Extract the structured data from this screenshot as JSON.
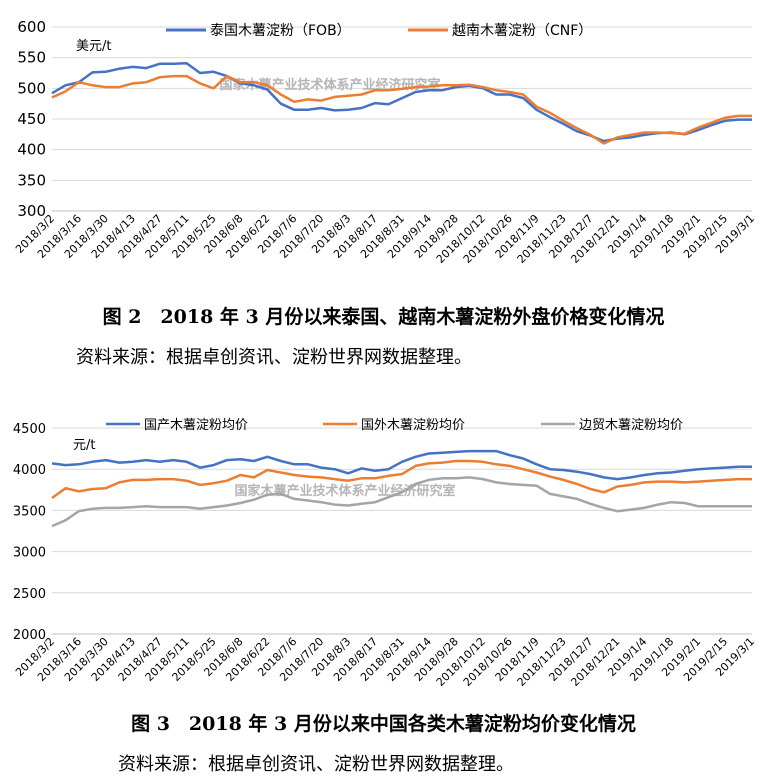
{
  "charts": [
    {
      "legend": [
        "泰国木薯淀粉（FOB）",
        "越南木薯淀粉（CNF）"
      ],
      "caption": "图 2　2018 年 3 月份以来泰国、越南木薯淀粉外盘价格变化情况",
      "source": "资料来源：根据卓创资讯、淀粉世界网数据整理。"
    },
    {
      "legend": [
        "国产木薯淀粉均价",
        "国外木薯淀粉均价",
        "边贸木薯淀粉均价"
      ],
      "caption": "图 3　2018 年 3 月份以来中国各类木薯淀粉均价变化情况",
      "source": "资料来源：根据卓创资讯、淀粉世界网数据整理。"
    }
  ],
  "chart_data": [
    {
      "type": "line",
      "unit_label": "美元/t",
      "watermark": "国家木薯产业技术体系产业经济研究室",
      "ylim": [
        300,
        600
      ],
      "yticks": [
        300,
        350,
        400,
        450,
        500,
        550,
        600
      ],
      "grid": true,
      "legend_position": "top",
      "colors": [
        "#4472C4",
        "#ED7D31"
      ],
      "x_tick_labels": [
        "2018/3/2",
        "2018/3/16",
        "2018/3/30",
        "2018/4/13",
        "2018/4/27",
        "2018/5/11",
        "2018/5/25",
        "2018/6/8",
        "2018/6/22",
        "2018/7/6",
        "2018/7/20",
        "2018/8/3",
        "2018/8/17",
        "2018/8/31",
        "2018/9/14",
        "2018/9/28",
        "2018/10/12",
        "2018/10/26",
        "2018/11/9",
        "2018/11/23",
        "2018/12/7",
        "2018/12/21",
        "2019/1/4",
        "2019/1/18",
        "2019/2/1",
        "2019/2/15",
        "2019/3/1"
      ],
      "x_range": [
        0,
        52
      ],
      "x": [
        0,
        1,
        2,
        3,
        4,
        5,
        6,
        7,
        8,
        9,
        10,
        11,
        12,
        13,
        14,
        15,
        16,
        17,
        18,
        19,
        20,
        21,
        22,
        23,
        24,
        25,
        26,
        27,
        28,
        29,
        30,
        31,
        32,
        33,
        34,
        35,
        36,
        37,
        38,
        39,
        40,
        41,
        42,
        43,
        44,
        45,
        46,
        47,
        48,
        49,
        50,
        51,
        52
      ],
      "series": [
        {
          "name": "泰国木薯淀粉（FOB）",
          "values": [
            492,
            505,
            510,
            526,
            527,
            532,
            535,
            533,
            540,
            540,
            541,
            525,
            527,
            520,
            508,
            505,
            498,
            475,
            465,
            465,
            468,
            464,
            465,
            468,
            476,
            474,
            484,
            494,
            497,
            497,
            502,
            504,
            500,
            490,
            490,
            484,
            465,
            453,
            442,
            430,
            423,
            414,
            418,
            420,
            424,
            427,
            428,
            425,
            432,
            440,
            447,
            449,
            449
          ]
        },
        {
          "name": "越南木薯淀粉（CNF）",
          "values": [
            485,
            495,
            510,
            505,
            502,
            502,
            508,
            510,
            518,
            520,
            520,
            508,
            500,
            520,
            510,
            510,
            505,
            490,
            478,
            482,
            480,
            486,
            488,
            490,
            497,
            497,
            499,
            502,
            503,
            505,
            505,
            506,
            502,
            497,
            494,
            490,
            470,
            460,
            447,
            435,
            424,
            410,
            420,
            424,
            428,
            428,
            427,
            426,
            436,
            444,
            452,
            455,
            455
          ]
        }
      ]
    },
    {
      "type": "line",
      "unit_label": "元/t",
      "watermark": "国家木薯产业技术体系产业经济研究室",
      "ylim": [
        2000,
        4500
      ],
      "yticks": [
        2000,
        2500,
        3000,
        3500,
        4000,
        4500
      ],
      "grid": true,
      "legend_position": "top",
      "colors": [
        "#4472C4",
        "#ED7D31",
        "#A5A5A5"
      ],
      "x_tick_labels": [
        "2018/3/2",
        "2018/3/16",
        "2018/3/30",
        "2018/4/13",
        "2018/4/27",
        "2018/5/11",
        "2018/5/25",
        "2018/6/8",
        "2018/6/22",
        "2018/7/6",
        "2018/7/20",
        "2018/8/3",
        "2018/8/17",
        "2018/8/31",
        "2018/9/14",
        "2018/9/28",
        "2018/10/12",
        "2018/10/26",
        "2018/11/9",
        "2018/11/23",
        "2018/12/7",
        "2018/12/21",
        "2019/1/4",
        "2019/1/18",
        "2019/2/1",
        "2019/2/15",
        "2019/3/1"
      ],
      "x_range": [
        0,
        52
      ],
      "x": [
        0,
        1,
        2,
        3,
        4,
        5,
        6,
        7,
        8,
        9,
        10,
        11,
        12,
        13,
        14,
        15,
        16,
        17,
        18,
        19,
        20,
        21,
        22,
        23,
        24,
        25,
        26,
        27,
        28,
        29,
        30,
        31,
        32,
        33,
        34,
        35,
        36,
        37,
        38,
        39,
        40,
        41,
        42,
        43,
        44,
        45,
        46,
        47,
        48,
        49,
        50,
        51,
        52
      ],
      "series": [
        {
          "name": "国产木薯淀粉均价",
          "values": [
            4070,
            4050,
            4060,
            4090,
            4110,
            4080,
            4090,
            4110,
            4090,
            4110,
            4090,
            4020,
            4050,
            4110,
            4120,
            4100,
            4150,
            4100,
            4060,
            4060,
            4020,
            4000,
            3950,
            4010,
            3980,
            4000,
            4090,
            4150,
            4190,
            4200,
            4210,
            4220,
            4220,
            4220,
            4170,
            4130,
            4060,
            4000,
            3990,
            3970,
            3940,
            3900,
            3880,
            3900,
            3930,
            3950,
            3960,
            3980,
            4000,
            4010,
            4020,
            4030,
            4030
          ]
        },
        {
          "name": "国外木薯淀粉均价",
          "values": [
            3650,
            3770,
            3730,
            3760,
            3770,
            3840,
            3870,
            3870,
            3880,
            3880,
            3860,
            3810,
            3830,
            3860,
            3930,
            3900,
            3990,
            3960,
            3930,
            3910,
            3900,
            3880,
            3860,
            3890,
            3890,
            3920,
            3940,
            4040,
            4070,
            4080,
            4100,
            4100,
            4090,
            4060,
            4040,
            4000,
            3960,
            3910,
            3870,
            3820,
            3760,
            3720,
            3790,
            3810,
            3840,
            3850,
            3850,
            3840,
            3850,
            3860,
            3870,
            3880,
            3880
          ]
        },
        {
          "name": "边贸木薯淀粉均价",
          "values": [
            3310,
            3380,
            3490,
            3520,
            3530,
            3530,
            3540,
            3550,
            3540,
            3540,
            3540,
            3520,
            3540,
            3560,
            3590,
            3630,
            3690,
            3700,
            3640,
            3620,
            3600,
            3570,
            3560,
            3580,
            3600,
            3660,
            3720,
            3820,
            3870,
            3890,
            3890,
            3900,
            3880,
            3840,
            3820,
            3810,
            3800,
            3700,
            3670,
            3640,
            3580,
            3530,
            3490,
            3510,
            3530,
            3570,
            3600,
            3590,
            3550,
            3550,
            3550,
            3550,
            3550
          ]
        }
      ]
    }
  ]
}
